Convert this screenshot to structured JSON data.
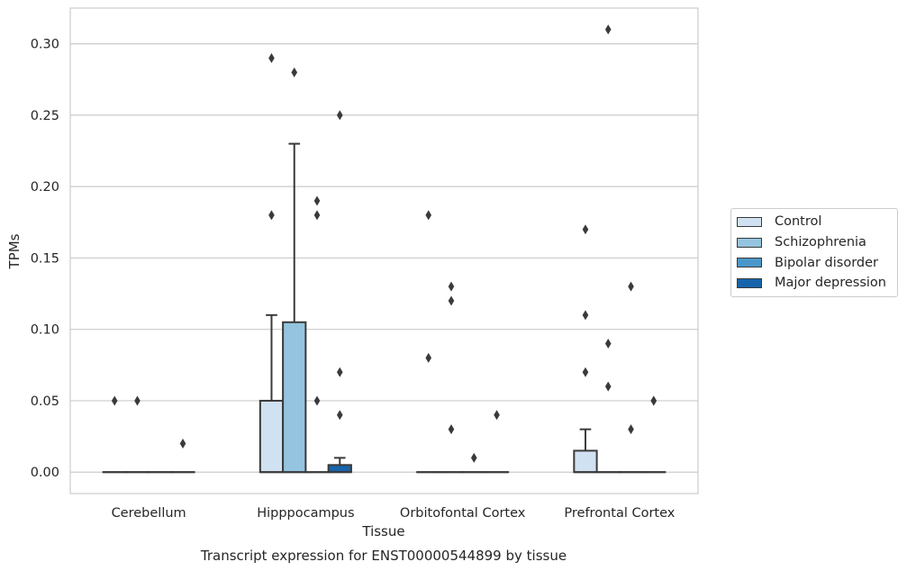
{
  "chart_data": {
    "type": "box",
    "title": "Transcript expression for ENST00000544899 by tissue",
    "xlabel": "Tissue",
    "ylabel": "TPMs",
    "ylim": [
      -0.015,
      0.325
    ],
    "yticks": [
      "0.00",
      "0.05",
      "0.10",
      "0.15",
      "0.20",
      "0.25",
      "0.30"
    ],
    "grid": "horizontal",
    "legend_position": "right",
    "categories": [
      "Cerebellum",
      "Hipppocampus",
      "Orbitofontal Cortex",
      "Prefrontal Cortex"
    ],
    "series": [
      {
        "name": "Control",
        "color": "#d0e1f2",
        "boxes": [
          {
            "q1": 0,
            "median": 0,
            "q3": 0,
            "whislo": 0,
            "whishi": 0,
            "fliers": [
              0.05
            ]
          },
          {
            "q1": 0,
            "median": 0,
            "q3": 0.05,
            "whislo": 0,
            "whishi": 0.11,
            "fliers": [
              0.18,
              0.29
            ]
          },
          {
            "q1": 0,
            "median": 0,
            "q3": 0,
            "whislo": 0,
            "whishi": 0,
            "fliers": [
              0.08,
              0.18
            ]
          },
          {
            "q1": 0,
            "median": 0,
            "q3": 0.015,
            "whislo": 0,
            "whishi": 0.03,
            "fliers": [
              0.07,
              0.11,
              0.17
            ]
          }
        ]
      },
      {
        "name": "Schizophrenia",
        "color": "#94c4df",
        "boxes": [
          {
            "q1": 0,
            "median": 0,
            "q3": 0,
            "whislo": 0,
            "whishi": 0,
            "fliers": [
              0.05
            ]
          },
          {
            "q1": 0,
            "median": 0,
            "q3": 0.105,
            "whislo": 0,
            "whishi": 0.23,
            "fliers": [
              0.28
            ]
          },
          {
            "q1": 0,
            "median": 0,
            "q3": 0,
            "whislo": 0,
            "whishi": 0,
            "fliers": [
              0.03,
              0.12,
              0.13
            ]
          },
          {
            "q1": 0,
            "median": 0,
            "q3": 0,
            "whislo": 0,
            "whishi": 0,
            "fliers": [
              0.06,
              0.09,
              0.31
            ]
          }
        ]
      },
      {
        "name": "Bipolar disorder",
        "color": "#4a98c9",
        "boxes": [
          {
            "q1": 0,
            "median": 0,
            "q3": 0,
            "whislo": 0,
            "whishi": 0,
            "fliers": []
          },
          {
            "q1": 0,
            "median": 0,
            "q3": 0,
            "whislo": 0,
            "whishi": 0,
            "fliers": [
              0.05,
              0.18,
              0.19
            ]
          },
          {
            "q1": 0,
            "median": 0,
            "q3": 0,
            "whislo": 0,
            "whishi": 0,
            "fliers": [
              0.01
            ]
          },
          {
            "q1": 0,
            "median": 0,
            "q3": 0,
            "whislo": 0,
            "whishi": 0,
            "fliers": [
              0.03,
              0.13
            ]
          }
        ]
      },
      {
        "name": "Major depression",
        "color": "#1764ab",
        "boxes": [
          {
            "q1": 0,
            "median": 0,
            "q3": 0,
            "whislo": 0,
            "whishi": 0,
            "fliers": [
              0.02
            ]
          },
          {
            "q1": 0,
            "median": 0,
            "q3": 0.005,
            "whislo": 0,
            "whishi": 0.01,
            "fliers": [
              0.04,
              0.07,
              0.25
            ]
          },
          {
            "q1": 0,
            "median": 0,
            "q3": 0,
            "whislo": 0,
            "whishi": 0,
            "fliers": [
              0.04
            ]
          },
          {
            "q1": 0,
            "median": 0,
            "q3": 0,
            "whislo": 0,
            "whishi": 0,
            "fliers": [
              0.05,
              0.05
            ]
          }
        ]
      }
    ]
  }
}
